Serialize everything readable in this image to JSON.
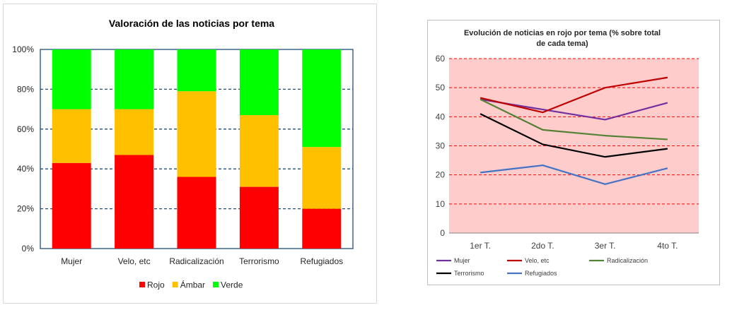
{
  "chart_data": [
    {
      "type": "bar",
      "stacked": "percent",
      "title": "Valoración de las noticias por tema",
      "categories": [
        "Mujer",
        "Velo, etc",
        "Radicalización",
        "Terrorismo",
        "Refugiados"
      ],
      "series": [
        {
          "name": "Rojo",
          "color": "#ff0000",
          "values": [
            43,
            47,
            36,
            31,
            20
          ]
        },
        {
          "name": "Ámbar",
          "color": "#ffc000",
          "values": [
            27,
            23,
            43,
            36,
            31
          ]
        },
        {
          "name": "Verde",
          "color": "#00ff00",
          "values": [
            30,
            30,
            21,
            33,
            49
          ]
        }
      ],
      "ylim": [
        0,
        100
      ],
      "yticks": [
        "0%",
        "20%",
        "40%",
        "60%",
        "80%",
        "100%"
      ],
      "grid": true,
      "grid_color": "#1f4e79",
      "legend": "bottom"
    },
    {
      "type": "line",
      "title_lines": [
        "Evolución  de noticias  en rojo por tema (% sobre total",
        "de cada tema)"
      ],
      "categories": [
        "1er T.",
        "2do T.",
        "3er T.",
        "4to T."
      ],
      "series": [
        {
          "name": "Mujer",
          "color": "#7030a0",
          "values": [
            46,
            42.5,
            39,
            44.8
          ]
        },
        {
          "name": "Velo, etc",
          "color": "#c00000",
          "values": [
            46.5,
            41.5,
            50,
            53.5
          ]
        },
        {
          "name": "Radicalización",
          "color": "#548235",
          "values": [
            46,
            35.5,
            33.5,
            32.2
          ]
        },
        {
          "name": "Terrorismo",
          "color": "#000000",
          "values": [
            41,
            30.5,
            26.2,
            29
          ]
        },
        {
          "name": "Refugiados",
          "color": "#4472c4",
          "values": [
            20.8,
            23.3,
            16.8,
            22.3
          ]
        }
      ],
      "ylim": [
        0,
        60
      ],
      "yticks": [
        "0",
        "10",
        "20",
        "30",
        "40",
        "50",
        "60"
      ],
      "grid": true,
      "grid_color": "#ff0000",
      "plot_background": "#ffcccc",
      "legend": "bottom"
    }
  ]
}
